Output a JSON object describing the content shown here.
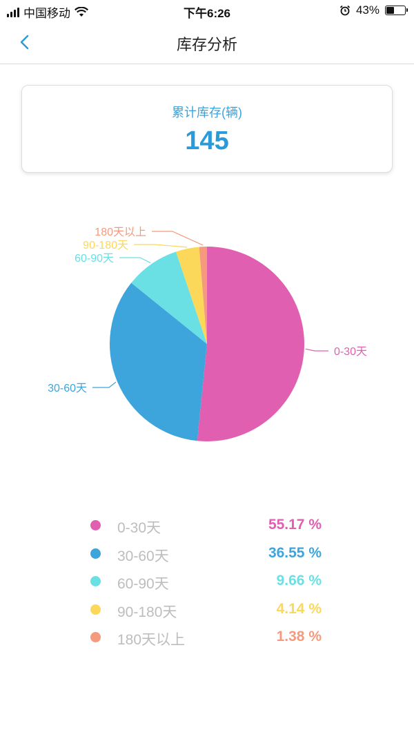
{
  "status_bar": {
    "carrier": "中国移动",
    "time": "下午6:26",
    "battery": "43%",
    "battery_level": 0.43
  },
  "nav": {
    "title": "库存分析"
  },
  "summary": {
    "label": "累计库存(辆)",
    "value": "145"
  },
  "chart_data": {
    "type": "pie",
    "slices": [
      {
        "label": "0-30天",
        "value": 55.17,
        "color": "#e05fb0"
      },
      {
        "label": "30-60天",
        "value": 36.55,
        "color": "#3ea4dc"
      },
      {
        "label": "60-90天",
        "value": 9.66,
        "color": "#6ae0e4"
      },
      {
        "label": "90-180天",
        "value": 4.14,
        "color": "#fbd85a"
      },
      {
        "label": "180天以上",
        "value": 1.38,
        "color": "#f59a7d"
      }
    ]
  },
  "legend": [
    {
      "label": "0-30天",
      "value": "55.17 %",
      "color": "#e05fb0"
    },
    {
      "label": "30-60天",
      "value": "36.55 %",
      "color": "#3ea4dc"
    },
    {
      "label": "60-90天",
      "value": "9.66 %",
      "color": "#6ae0e4"
    },
    {
      "label": "90-180天",
      "value": "4.14 %",
      "color": "#fbd85a"
    },
    {
      "label": "180天以上",
      "value": "1.38 %",
      "color": "#f59a7d"
    }
  ]
}
